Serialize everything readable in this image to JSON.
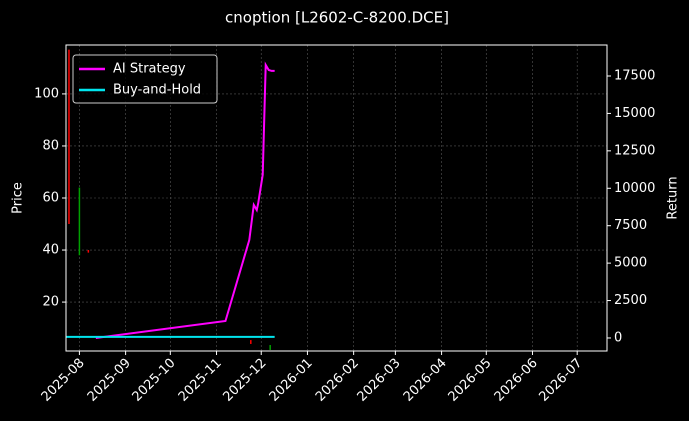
{
  "chart_data": {
    "type": "line",
    "title": "cnoption [L2602-C-8200.DCE]",
    "ylabel": "Price",
    "y2label": "Return",
    "xlim": [
      "2025-07-23",
      "2026-07-21"
    ],
    "xticks": [
      "2025-08",
      "2025-09",
      "2025-10",
      "2025-11",
      "2025-12",
      "2026-01",
      "2026-02",
      "2026-03",
      "2026-04",
      "2026-05",
      "2026-06",
      "2026-07"
    ],
    "ylim": [
      1.2,
      118.8
    ],
    "yticks": [
      20,
      40,
      60,
      80,
      100
    ],
    "y2lim": [
      -870,
      19570
    ],
    "y2ticks": [
      0,
      2500,
      5000,
      7500,
      10000,
      12500,
      15000,
      17500
    ],
    "grid": true,
    "legend": "upper left",
    "series": [
      {
        "name": "AI Strategy",
        "color": "#ff00ff",
        "axis": "y2",
        "x": [
          "2025-08-12",
          "2025-11-07",
          "2025-11-23",
          "2025-11-26",
          "2025-11-28",
          "2025-11-29",
          "2025-12-02",
          "2025-12-04",
          "2025-12-06",
          "2025-12-08",
          "2025-12-10"
        ],
        "values": [
          0,
          1135,
          6550,
          8890,
          8550,
          9020,
          10900,
          18240,
          17900,
          17840,
          17840
        ]
      },
      {
        "name": "Buy-and-Hold",
        "color": "#00e5ee",
        "axis": "y2",
        "x": [
          "2025-07-23",
          "2025-12-10"
        ],
        "values": [
          70,
          70
        ]
      }
    ],
    "candles": {
      "x": [
        "2025-07-25",
        "2025-08-01",
        "2025-08-07",
        "2025-11-24",
        "2025-12-07"
      ],
      "high": [
        117,
        64,
        40,
        5.4,
        3.5
      ],
      "low": [
        50,
        38,
        39,
        3.9,
        1.6
      ],
      "colors": [
        "#ff0000",
        "#00a000",
        "#ff0000",
        "#ff0000",
        "#00a000"
      ]
    }
  }
}
